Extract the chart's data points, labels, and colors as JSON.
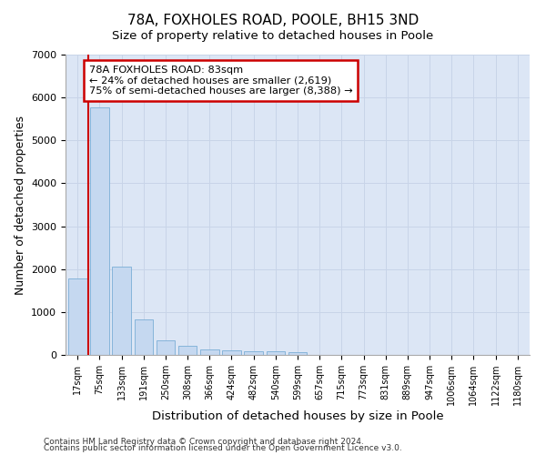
{
  "title": "78A, FOXHOLES ROAD, POOLE, BH15 3ND",
  "subtitle": "Size of property relative to detached houses in Poole",
  "xlabel": "Distribution of detached houses by size in Poole",
  "ylabel": "Number of detached properties",
  "footnote1": "Contains HM Land Registry data © Crown copyright and database right 2024.",
  "footnote2": "Contains public sector information licensed under the Open Government Licence v3.0.",
  "bar_labels": [
    "17sqm",
    "75sqm",
    "133sqm",
    "191sqm",
    "250sqm",
    "308sqm",
    "366sqm",
    "424sqm",
    "482sqm",
    "540sqm",
    "599sqm",
    "657sqm",
    "715sqm",
    "773sqm",
    "831sqm",
    "889sqm",
    "947sqm",
    "1006sqm",
    "1064sqm",
    "1122sqm",
    "1180sqm"
  ],
  "bar_values": [
    1780,
    5780,
    2060,
    820,
    350,
    215,
    130,
    100,
    95,
    80,
    70,
    0,
    0,
    0,
    0,
    0,
    0,
    0,
    0,
    0,
    0
  ],
  "bar_color": "#c5d8f0",
  "bar_edge_color": "#7aaed6",
  "vline_x": 0.5,
  "vline_color": "#cc0000",
  "annotation_line1": "78A FOXHOLES ROAD: 83sqm",
  "annotation_line2": "← 24% of detached houses are smaller (2,619)",
  "annotation_line3": "75% of semi-detached houses are larger (8,388) →",
  "annotation_box_facecolor": "#ffffff",
  "annotation_box_edgecolor": "#cc0000",
  "ylim": [
    0,
    7000
  ],
  "yticks": [
    0,
    1000,
    2000,
    3000,
    4000,
    5000,
    6000,
    7000
  ],
  "grid_color": "#c8d4e8",
  "plot_bg_color": "#dce6f5",
  "fig_bg_color": "#ffffff",
  "title_fontsize": 11,
  "subtitle_fontsize": 9.5,
  "ylabel_fontsize": 9,
  "xlabel_fontsize": 9.5,
  "tick_fontsize": 7,
  "footnote_fontsize": 6.5
}
